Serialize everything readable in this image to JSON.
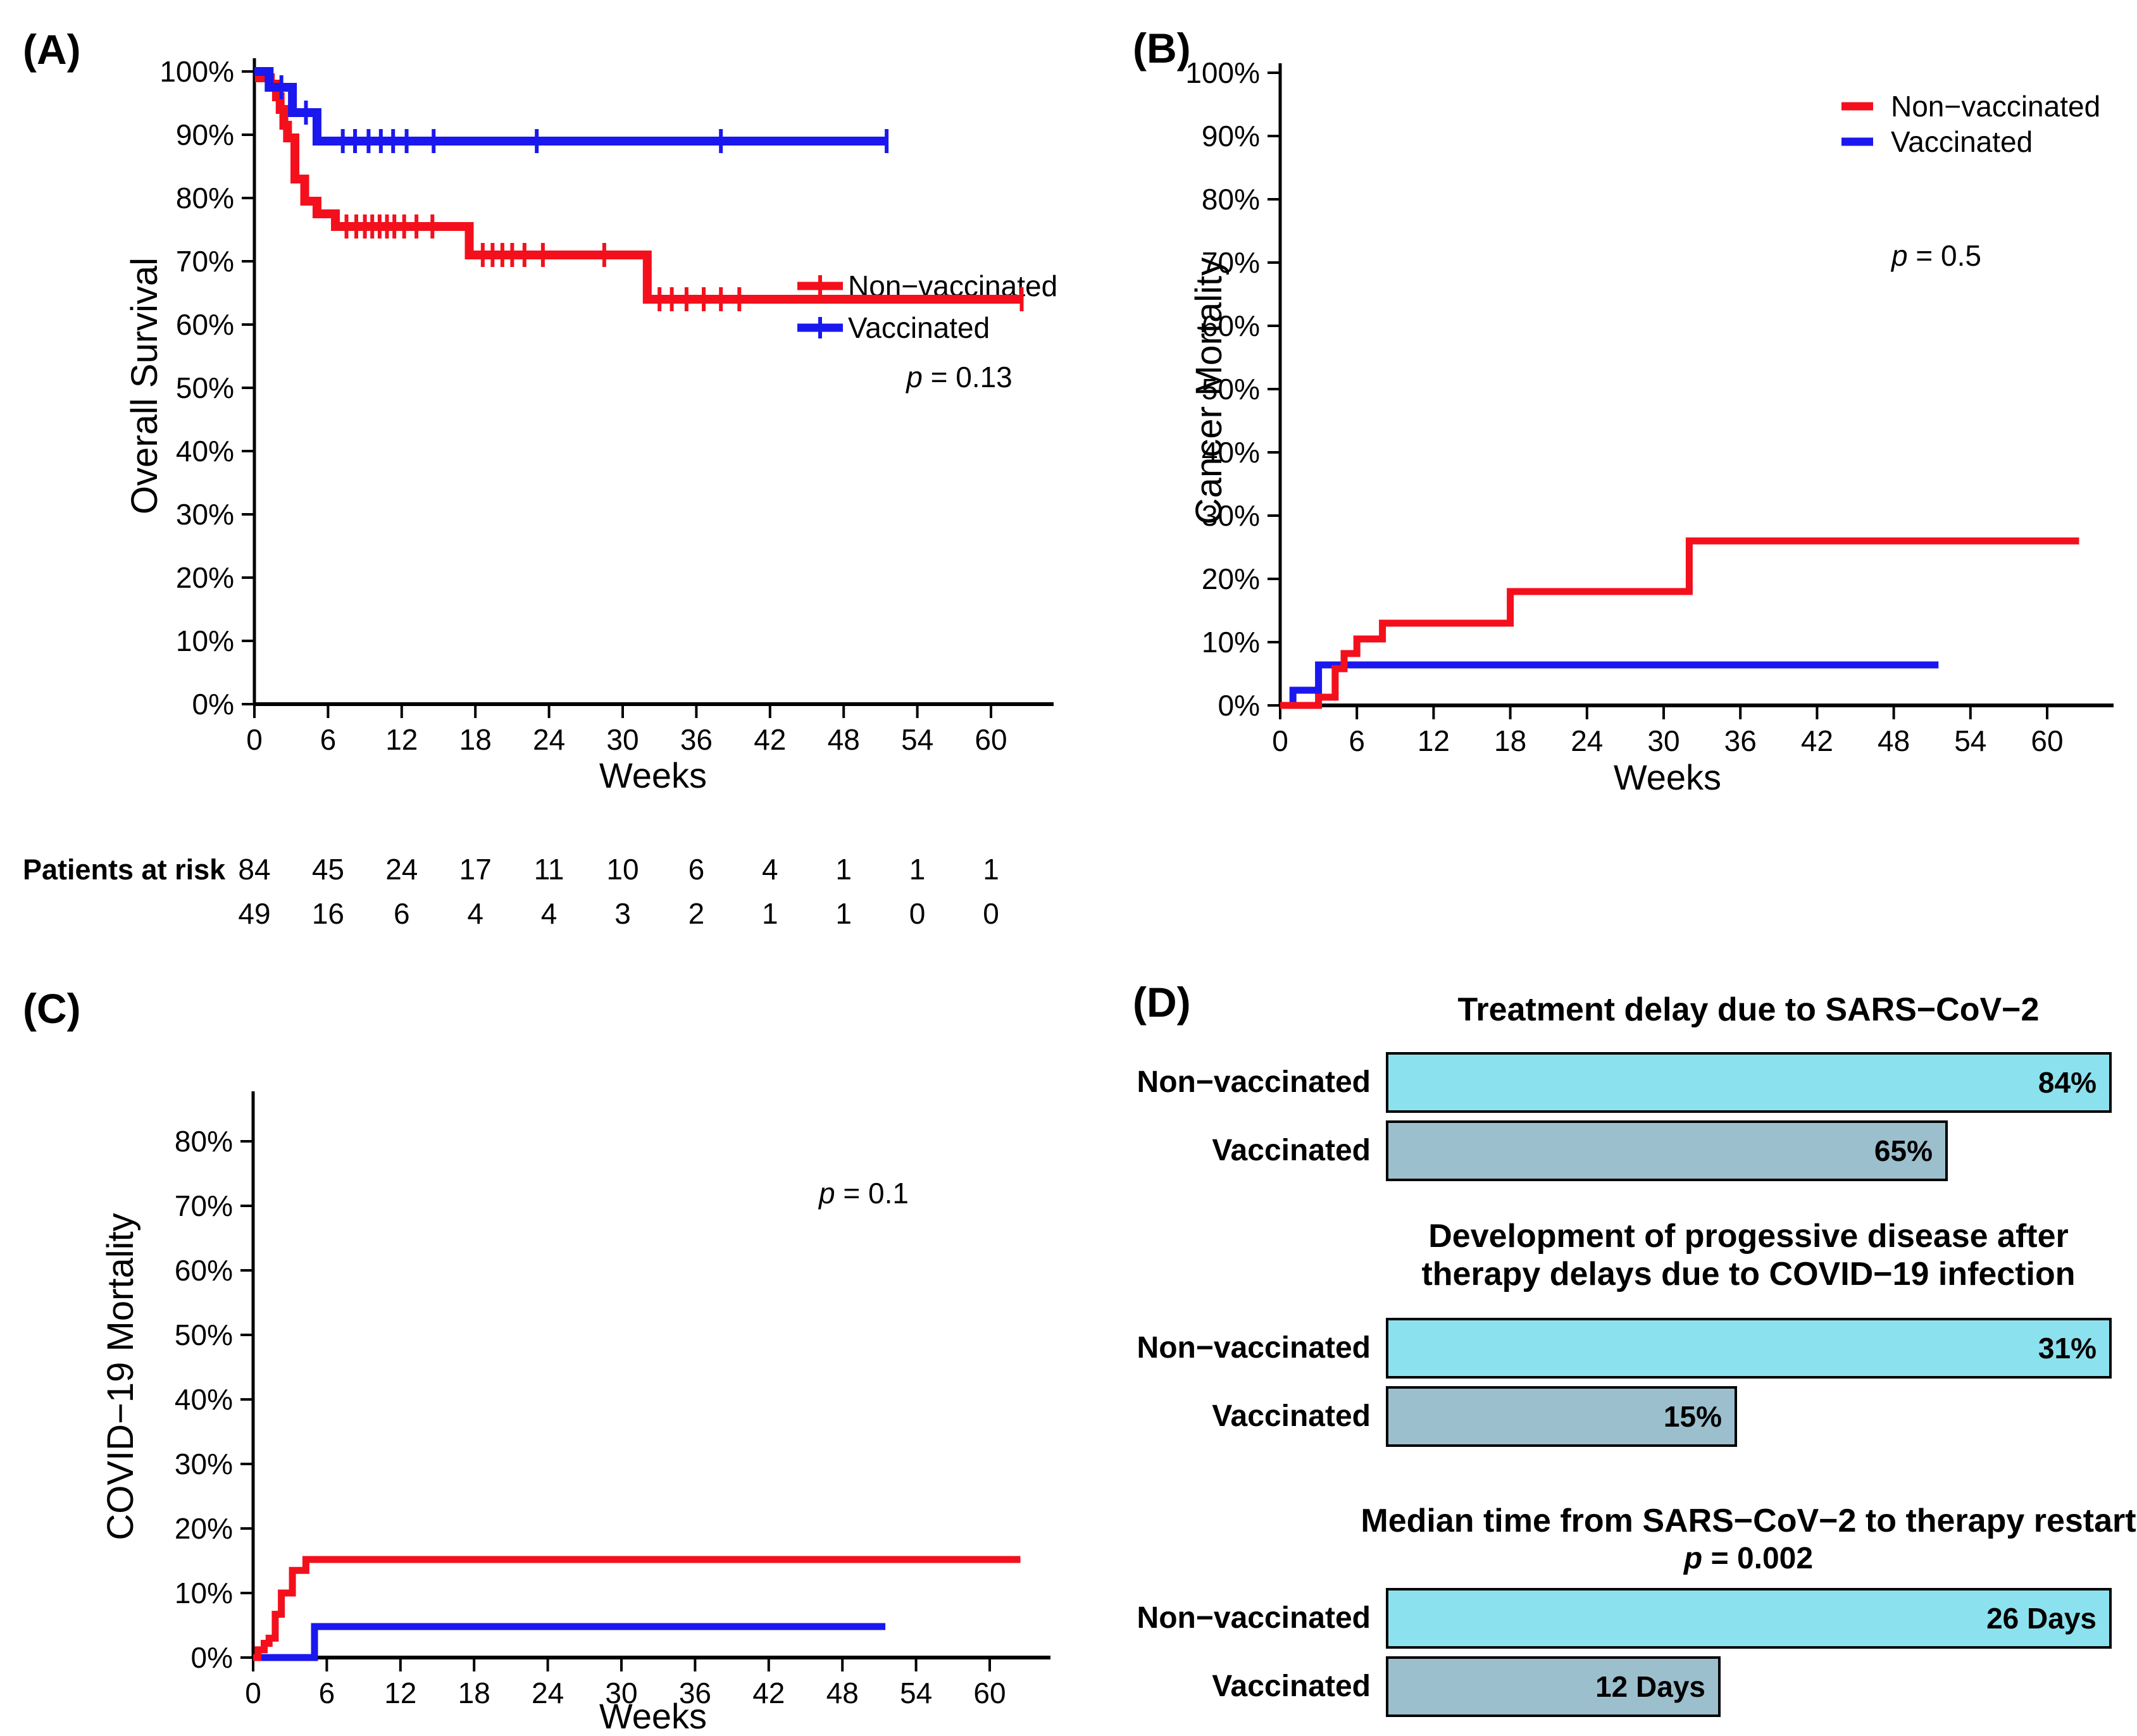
{
  "figure_background": "#ffffff",
  "colors": {
    "non_vaccinated_line": "#f3101c",
    "vaccinated_line": "#1a18ee",
    "non_vaccinated_bar": "#8ce1ee",
    "vaccinated_bar": "#9cbfcd",
    "axis": "#000000"
  },
  "chart_data": [
    {
      "id": "A",
      "type": "km",
      "panel_label": "(A)",
      "xlabel": "Weeks",
      "ylabel": "Overall Survival",
      "xlim": [
        0,
        65
      ],
      "ylim": [
        0,
        100
      ],
      "x_ticks": [
        0,
        6,
        12,
        18,
        24,
        30,
        36,
        42,
        48,
        54,
        60
      ],
      "y_ticks": [
        0,
        10,
        20,
        30,
        40,
        50,
        60,
        70,
        80,
        90,
        100
      ],
      "y_tick_suffix": "%",
      "p_value": "p = 0.13",
      "legend": {
        "entries": [
          {
            "label": "Non−vaccinated",
            "color": "#f3101c"
          },
          {
            "label": "Vaccinated",
            "color": "#1a18ee"
          }
        ]
      },
      "series": [
        {
          "name": "Non−vaccinated",
          "color": "#f3101c",
          "steps": [
            [
              0,
              100
            ],
            [
              0.4,
              99
            ],
            [
              1.3,
              98
            ],
            [
              1.8,
              96
            ],
            [
              2.1,
              94
            ],
            [
              2.4,
              91.5
            ],
            [
              2.7,
              89.5
            ],
            [
              3.3,
              83
            ],
            [
              4.1,
              79.5
            ],
            [
              5.1,
              77.5
            ],
            [
              6.6,
              75.5
            ],
            [
              17.5,
              71
            ],
            [
              32,
              64
            ],
            [
              62.5,
              64
            ]
          ],
          "censors": [
            [
              7.5,
              75.5
            ],
            [
              8.3,
              75.5
            ],
            [
              9,
              75.5
            ],
            [
              9.6,
              75.5
            ],
            [
              10.2,
              75.5
            ],
            [
              10.8,
              75.5
            ],
            [
              11.4,
              75.5
            ],
            [
              12.2,
              75.5
            ],
            [
              13.2,
              75.5
            ],
            [
              14.5,
              75.5
            ],
            [
              18.6,
              71
            ],
            [
              19.4,
              71
            ],
            [
              20.2,
              71
            ],
            [
              21,
              71
            ],
            [
              22,
              71
            ],
            [
              23.5,
              71
            ],
            [
              28.5,
              71
            ],
            [
              33,
              64
            ],
            [
              34,
              64
            ],
            [
              35.2,
              64
            ],
            [
              36.6,
              64
            ],
            [
              38,
              64
            ],
            [
              39.5,
              64
            ],
            [
              62.5,
              64
            ]
          ]
        },
        {
          "name": "Vaccinated",
          "color": "#1a18ee",
          "steps": [
            [
              0,
              100
            ],
            [
              1.2,
              97.5
            ],
            [
              3.1,
              93.5
            ],
            [
              5.1,
              89
            ],
            [
              51.5,
              89
            ]
          ],
          "censors": [
            [
              2.2,
              97.5
            ],
            [
              4.2,
              93.5
            ],
            [
              7.2,
              89
            ],
            [
              8.2,
              89
            ],
            [
              9.3,
              89
            ],
            [
              10.3,
              89
            ],
            [
              11.3,
              89
            ],
            [
              12.4,
              89
            ],
            [
              14.6,
              89
            ],
            [
              23,
              89
            ],
            [
              38,
              89
            ],
            [
              51.5,
              89
            ]
          ]
        }
      ],
      "patients_at_risk": {
        "label": "Patients at risk",
        "weeks": [
          0,
          6,
          12,
          18,
          24,
          30,
          36,
          42,
          48,
          54,
          60
        ],
        "rows": [
          {
            "group": "Non−vaccinated",
            "color": "#f3101c",
            "values": [
              84,
              45,
              24,
              17,
              11,
              10,
              6,
              4,
              1,
              1,
              1
            ]
          },
          {
            "group": "Vaccinated",
            "color": "#1a18ee",
            "values": [
              49,
              16,
              6,
              4,
              4,
              3,
              2,
              1,
              1,
              0,
              0
            ]
          }
        ]
      }
    },
    {
      "id": "B",
      "type": "km",
      "panel_label": "(B)",
      "xlabel": "Weeks",
      "ylabel": "Cancer Mortality",
      "xlim": [
        0,
        65
      ],
      "ylim": [
        0,
        100
      ],
      "x_ticks": [
        0,
        6,
        12,
        18,
        24,
        30,
        36,
        42,
        48,
        54,
        60
      ],
      "y_ticks": [
        0,
        10,
        20,
        30,
        40,
        50,
        60,
        70,
        80,
        90,
        100
      ],
      "y_tick_suffix": "%",
      "p_value": "p = 0.5",
      "legend": {
        "entries": [
          {
            "label": "Non−vaccinated",
            "color": "#f3101c"
          },
          {
            "label": "Vaccinated",
            "color": "#1a18ee"
          }
        ]
      },
      "series": [
        {
          "name": "Vaccinated",
          "color": "#1a18ee",
          "steps": [
            [
              0,
              0
            ],
            [
              1,
              2.4
            ],
            [
              3,
              6.4
            ],
            [
              51.5,
              6.4
            ]
          ],
          "censors": []
        },
        {
          "name": "Non−vaccinated",
          "color": "#f3101c",
          "steps": [
            [
              0,
              0
            ],
            [
              3,
              1.3
            ],
            [
              4.3,
              5.8
            ],
            [
              5,
              8.2
            ],
            [
              6,
              10.5
            ],
            [
              8,
              13
            ],
            [
              18,
              18
            ],
            [
              32,
              26
            ],
            [
              62.5,
              26
            ]
          ],
          "censors": []
        }
      ]
    },
    {
      "id": "C",
      "type": "km",
      "panel_label": "(C)",
      "xlabel": "Weeks",
      "ylabel": "COVID−19 Mortality",
      "xlim": [
        0,
        65
      ],
      "ylim": [
        0,
        85
      ],
      "x_ticks": [
        0,
        6,
        12,
        18,
        24,
        30,
        36,
        42,
        48,
        54,
        60
      ],
      "y_ticks": [
        0,
        10,
        20,
        30,
        40,
        50,
        60,
        70,
        80
      ],
      "y_tick_suffix": "%",
      "p_value": "p = 0.1",
      "series": [
        {
          "name": "Vaccinated",
          "color": "#1a18ee",
          "steps": [
            [
              0,
              0
            ],
            [
              5,
              4.8
            ],
            [
              51.5,
              4.8
            ]
          ],
          "censors": []
        },
        {
          "name": "Non−vaccinated",
          "color": "#f3101c",
          "steps": [
            [
              0,
              0
            ],
            [
              0.4,
              1.2
            ],
            [
              0.9,
              2.2
            ],
            [
              1.3,
              3
            ],
            [
              1.8,
              6.7
            ],
            [
              2.3,
              10
            ],
            [
              3.2,
              13.5
            ],
            [
              4.3,
              15.2
            ],
            [
              62.5,
              15.2
            ]
          ],
          "censors": []
        }
      ]
    },
    {
      "id": "D",
      "type": "bar-groups",
      "panel_label": "(D)",
      "groups": [
        {
          "title_lines": [
            "Treatment delay due to SARS−CoV−2"
          ],
          "p_value": "",
          "bars": [
            {
              "label": "Non−vaccinated",
              "value": 84,
              "display": "84%",
              "color": "#8ce1ee"
            },
            {
              "label": "Vaccinated",
              "value": 65,
              "display": "65%",
              "color": "#9cbfcd"
            }
          ]
        },
        {
          "title_lines": [
            "Development of progessive disease after",
            "therapy delays due to COVID−19 infection"
          ],
          "p_value": "",
          "bars": [
            {
              "label": "Non−vaccinated",
              "value": 31,
              "display": "31%",
              "color": "#8ce1ee"
            },
            {
              "label": "Vaccinated",
              "value": 15,
              "display": "15%",
              "color": "#9cbfcd"
            }
          ]
        },
        {
          "title_lines": [
            "Median time from SARS−CoV−2 to therapy restart"
          ],
          "p_value": "p = 0.002",
          "bars": [
            {
              "label": "Non−vaccinated",
              "value": 26,
              "display": "26 Days",
              "color": "#8ce1ee"
            },
            {
              "label": "Vaccinated",
              "value": 12,
              "display": "12 Days",
              "color": "#9cbfcd"
            }
          ]
        }
      ]
    }
  ]
}
